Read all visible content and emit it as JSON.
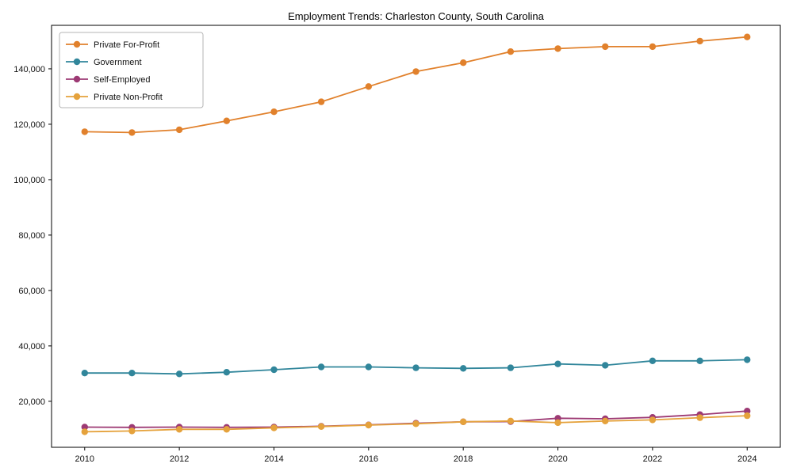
{
  "title": "Employment Trends: Charleston County, South Carolina",
  "chart_data": {
    "type": "line",
    "title": "Employment Trends: Charleston County, South Carolina",
    "xlabel": "",
    "ylabel": "",
    "grid": false,
    "legend_position": "upper left",
    "xlim": [
      2009.3,
      2024.7
    ],
    "ylim": [
      3400,
      155700
    ],
    "xticks": [
      2010,
      2012,
      2014,
      2016,
      2018,
      2020,
      2022,
      2024
    ],
    "yticks": [
      20000,
      40000,
      60000,
      80000,
      100000,
      120000,
      140000
    ],
    "x": [
      2010,
      2011,
      2012,
      2013,
      2014,
      2015,
      2016,
      2017,
      2018,
      2019,
      2020,
      2021,
      2022,
      2023,
      2024
    ],
    "series": [
      {
        "name": "Private For-Profit",
        "color": "#e1812c",
        "values": [
          117300,
          117000,
          118000,
          121200,
          124500,
          128100,
          133600,
          139000,
          142200,
          146200,
          147300,
          148000,
          148000,
          150000,
          151500
        ]
      },
      {
        "name": "Government",
        "color": "#31869b",
        "values": [
          30200,
          30200,
          29900,
          30500,
          31400,
          32400,
          32400,
          32100,
          31900,
          32100,
          33500,
          33000,
          34600,
          34600,
          35000
        ]
      },
      {
        "name": "Self-Employed",
        "color": "#9d3a74",
        "values": [
          10700,
          10600,
          10700,
          10600,
          10700,
          11000,
          11500,
          12100,
          12600,
          12700,
          13900,
          13700,
          14200,
          15200,
          16500
        ]
      },
      {
        "name": "Private Non-Profit",
        "color": "#e5a23c",
        "values": [
          9000,
          9300,
          9900,
          9900,
          10400,
          10900,
          11400,
          11900,
          12600,
          12900,
          12300,
          12900,
          13300,
          14100,
          14800
        ]
      }
    ]
  }
}
